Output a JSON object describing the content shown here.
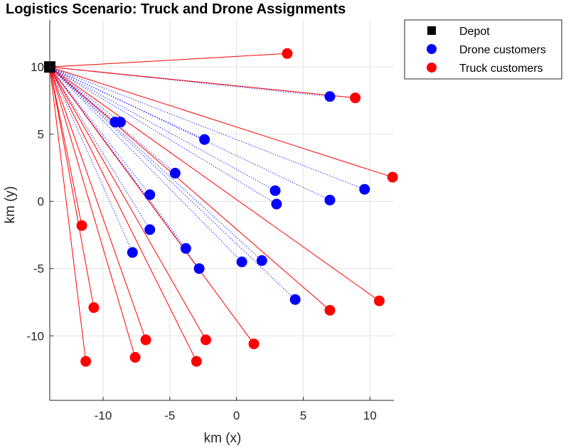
{
  "chart_data": {
    "type": "scatter",
    "title": "Logistics Scenario: Truck and Drone Assignments",
    "xlabel": "km (x)",
    "ylabel": "km (y)",
    "xlim": [
      -14,
      11.8
    ],
    "ylim": [
      -14.8,
      13.5
    ],
    "xticks": [
      -10,
      -5,
      0,
      5,
      10
    ],
    "yticks": [
      -10,
      -5,
      0,
      5,
      10
    ],
    "xtick_labels": [
      "-10",
      "-5",
      "0",
      "5",
      "10"
    ],
    "ytick_labels": [
      "-10",
      "-5",
      "0",
      "5",
      "10"
    ],
    "grid": true,
    "legend_position": "outside-top-right",
    "colors": {
      "depot": "#000000",
      "drone": "#0000ff",
      "truck": "#ff0000",
      "grid": "#e3e3e3"
    },
    "depot": {
      "name": "Depot",
      "x": -14,
      "y": 10
    },
    "series": [
      {
        "name": "Drone customers",
        "route_style": "dotted",
        "points": [
          {
            "x": -9.1,
            "y": 5.9
          },
          {
            "x": -8.7,
            "y": 5.9
          },
          {
            "x": -2.4,
            "y": 4.6
          },
          {
            "x": -4.6,
            "y": 2.1
          },
          {
            "x": 2.9,
            "y": 0.8
          },
          {
            "x": 3.0,
            "y": -0.2
          },
          {
            "x": 7.0,
            "y": 7.8
          },
          {
            "x": 7.0,
            "y": 0.1
          },
          {
            "x": 9.6,
            "y": 0.9
          },
          {
            "x": -6.5,
            "y": 0.5
          },
          {
            "x": -6.5,
            "y": -2.1
          },
          {
            "x": -7.8,
            "y": -3.8
          },
          {
            "x": -3.8,
            "y": -3.5
          },
          {
            "x": -2.8,
            "y": -5.0
          },
          {
            "x": 0.4,
            "y": -4.5
          },
          {
            "x": 1.9,
            "y": -4.4
          },
          {
            "x": 4.4,
            "y": -7.3
          }
        ]
      },
      {
        "name": "Truck customers",
        "route_style": "solid",
        "points": [
          {
            "x": 3.8,
            "y": 11.0
          },
          {
            "x": 8.9,
            "y": 7.7
          },
          {
            "x": 11.7,
            "y": 1.8
          },
          {
            "x": -11.6,
            "y": -1.8
          },
          {
            "x": -10.7,
            "y": -7.9
          },
          {
            "x": -11.3,
            "y": -11.9
          },
          {
            "x": -7.6,
            "y": -11.6
          },
          {
            "x": -6.8,
            "y": -10.3
          },
          {
            "x": -3.0,
            "y": -11.9
          },
          {
            "x": -2.3,
            "y": -10.3
          },
          {
            "x": 1.3,
            "y": -10.6
          },
          {
            "x": 7.0,
            "y": -8.1
          },
          {
            "x": 10.7,
            "y": -7.4
          }
        ]
      }
    ]
  }
}
